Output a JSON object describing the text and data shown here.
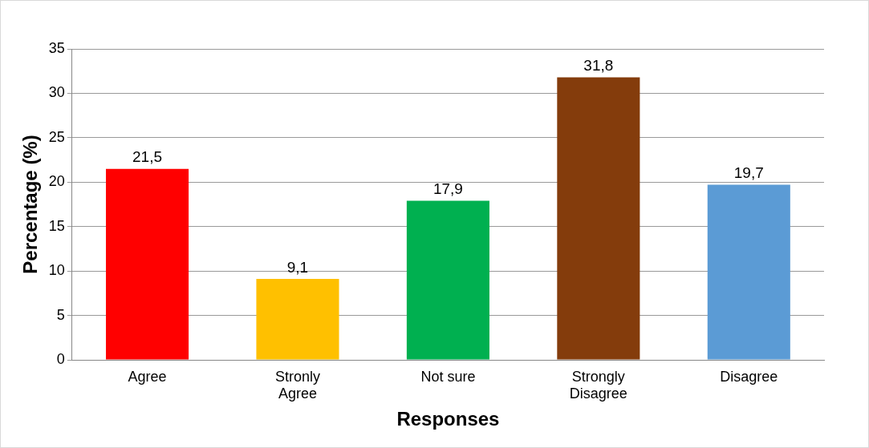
{
  "chart_data": {
    "type": "bar",
    "xlabel": "Responses",
    "ylabel": "Percentage (%)",
    "categories": [
      "Agree",
      "Stronly Agree",
      "Not sure",
      "Strongly Disagree",
      "Disagree"
    ],
    "values": [
      21.5,
      9.1,
      17.9,
      31.8,
      19.7
    ],
    "colors": [
      "#ff0000",
      "#ffc000",
      "#00b050",
      "#843c0c",
      "#5b9bd5"
    ],
    "value_labels": [
      "21,5",
      "9,1",
      "17,9",
      "31,8",
      "19,7"
    ],
    "ylim": [
      0,
      35
    ],
    "yticks": [
      0,
      5,
      10,
      15,
      20,
      25,
      30,
      35
    ],
    "grid": "y",
    "legend": false
  }
}
